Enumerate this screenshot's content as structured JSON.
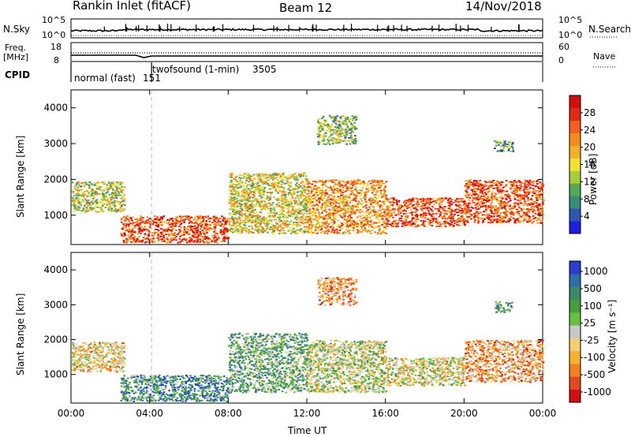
{
  "header": {
    "station": "Rankin Inlet (fitACF)",
    "beam": "Beam 12",
    "date": "14/Nov/2018"
  },
  "summary_panel": {
    "left_label": "N.Sky",
    "left_ticks": [
      "10^5",
      "10^0"
    ],
    "right_label": "N.Search",
    "right_ticks": [
      "10^5",
      "10^0"
    ]
  },
  "freq_panel": {
    "left_label_line1": "Freq.",
    "left_label_line2": "[MHz]",
    "left_ticks": [
      "18",
      "8"
    ],
    "right_label": "Nave",
    "right_ticks": [
      "60",
      "0"
    ]
  },
  "cpid_panel": {
    "label": "CPID",
    "programs": [
      {
        "name": "normal (fast)",
        "id": "151",
        "start_hour": 0
      },
      {
        "name": "twofsound (1-min)",
        "id": "3505",
        "start_hour": 4.1
      }
    ]
  },
  "chart_data": [
    {
      "type": "heatmap",
      "name": "power",
      "ylabel": "Slant Range [km]",
      "xlabel": "Time UT",
      "x_range_hours": [
        0,
        24
      ],
      "ylim": [
        180,
        4500
      ],
      "y_ticks": [
        1000,
        2000,
        3000,
        4000
      ],
      "x_ticks": [
        "00:00",
        "04:00",
        "08:00",
        "12:00",
        "16:00",
        "20:00",
        "00:00"
      ],
      "colorbar": {
        "label": "Power [dB]",
        "ticks": [
          "4",
          "8",
          "12",
          "16",
          "20",
          "24",
          "28"
        ],
        "colors": [
          "#1e1ee0",
          "#2e56b0",
          "#3a8a7a",
          "#56a856",
          "#a8cc3c",
          "#f0e030",
          "#f5b02a",
          "#f58a20",
          "#f06020",
          "#e02a1a",
          "#d01010"
        ]
      },
      "echo_regions": [
        {
          "t0": 0.0,
          "t1": 2.7,
          "r0": 1100,
          "r1": 1950,
          "level": 0.45
        },
        {
          "t0": 2.5,
          "t1": 8.0,
          "r0": 250,
          "r1": 1000,
          "level": 0.8
        },
        {
          "t0": 8.0,
          "t1": 12.0,
          "r0": 500,
          "r1": 2200,
          "level": 0.5
        },
        {
          "t0": 12.0,
          "t1": 16.0,
          "r0": 500,
          "r1": 2000,
          "level": 0.65
        },
        {
          "t0": 12.5,
          "t1": 14.5,
          "r0": 3000,
          "r1": 3800,
          "level": 0.4
        },
        {
          "t0": 16.0,
          "t1": 20.0,
          "r0": 700,
          "r1": 1500,
          "level": 0.8
        },
        {
          "t0": 20.0,
          "t1": 24.0,
          "r0": 800,
          "r1": 2000,
          "level": 0.8
        },
        {
          "t0": 21.5,
          "t1": 22.5,
          "r0": 2800,
          "r1": 3100,
          "level": 0.3
        }
      ]
    },
    {
      "type": "heatmap",
      "name": "velocity",
      "ylabel": "Slant Range [km]",
      "xlabel": "Time UT",
      "x_range_hours": [
        0,
        24
      ],
      "ylim": [
        180,
        4500
      ],
      "y_ticks": [
        1000,
        2000,
        3000,
        4000
      ],
      "x_ticks": [
        "00:00",
        "04:00",
        "08:00",
        "12:00",
        "16:00",
        "20:00",
        "00:00"
      ],
      "colorbar": {
        "label": "Velocity [m s⁻¹]",
        "ticks": [
          "1000",
          "500",
          "100",
          "25",
          "-25",
          "-100",
          "-500",
          "-1000"
        ],
        "colors": [
          "#2a3cc8",
          "#2e6ea8",
          "#3a8a6a",
          "#4a9a40",
          "#66c040",
          "#c8c8c8",
          "#f0d070",
          "#f5b030",
          "#f08020",
          "#e04820",
          "#d01010"
        ]
      },
      "echo_regions": [
        {
          "t0": 0.0,
          "t1": 2.7,
          "r0": 1100,
          "r1": 1950,
          "level": 0.62
        },
        {
          "t0": 2.5,
          "t1": 8.0,
          "r0": 250,
          "r1": 1000,
          "level": 0.25
        },
        {
          "t0": 8.0,
          "t1": 12.0,
          "r0": 500,
          "r1": 2200,
          "level": 0.35
        },
        {
          "t0": 12.0,
          "t1": 16.0,
          "r0": 500,
          "r1": 2000,
          "level": 0.5
        },
        {
          "t0": 12.5,
          "t1": 14.5,
          "r0": 3000,
          "r1": 3800,
          "level": 0.7
        },
        {
          "t0": 16.0,
          "t1": 20.0,
          "r0": 700,
          "r1": 1500,
          "level": 0.55
        },
        {
          "t0": 20.0,
          "t1": 24.0,
          "r0": 800,
          "r1": 2000,
          "level": 0.7
        },
        {
          "t0": 21.5,
          "t1": 22.5,
          "r0": 2800,
          "r1": 3100,
          "level": 0.3
        }
      ]
    }
  ]
}
